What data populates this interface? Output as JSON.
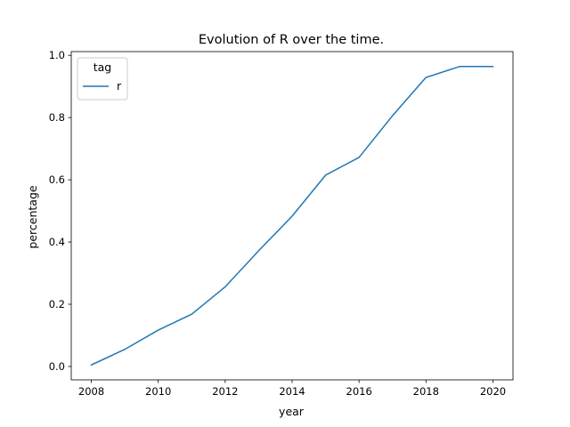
{
  "chart_data": {
    "type": "line",
    "title": "Evolution of R over the time.",
    "xlabel": "year",
    "ylabel": "percentage",
    "x": [
      2008,
      2009,
      2010,
      2011,
      2012,
      2013,
      2014,
      2015,
      2016,
      2017,
      2018,
      2019,
      2020
    ],
    "series": [
      {
        "name": "r",
        "values": [
          0.005,
          0.055,
          0.117,
          0.168,
          0.256,
          0.372,
          0.483,
          0.615,
          0.672,
          0.806,
          0.929,
          0.964,
          0.964
        ],
        "color": "#1f77b4"
      }
    ],
    "xlim": [
      2007.4,
      2020.6
    ],
    "ylim": [
      -0.043,
      1.012
    ],
    "xticks": [
      "2008",
      "2010",
      "2012",
      "2014",
      "2016",
      "2018",
      "2020"
    ],
    "xtick_values": [
      2008,
      2010,
      2012,
      2014,
      2016,
      2018,
      2020
    ],
    "yticks": [
      "0.0",
      "0.2",
      "0.4",
      "0.6",
      "0.8",
      "1.0"
    ],
    "ytick_values": [
      0.0,
      0.2,
      0.4,
      0.6,
      0.8,
      1.0
    ],
    "legend": {
      "title": "tag",
      "placement": "top-left"
    },
    "grid": false
  }
}
